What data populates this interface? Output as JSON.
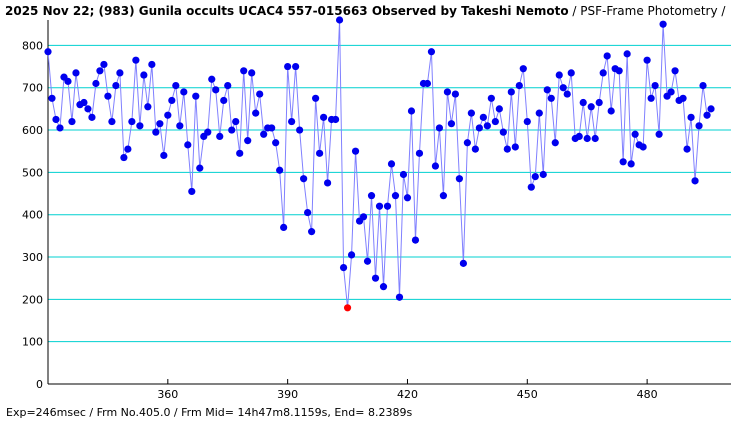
{
  "title": {
    "main": "2025 Nov 22; (983) Gunila occults UCAC4 557-015663 Observed by Takeshi Nemoto",
    "sub": " / PSF-Frame Photometry /"
  },
  "footer": {
    "text": "Exp=246msec / Frm No.405.0 / Frm Mid= 14h47m8.1159s, End= 8.2389s"
  },
  "colors": {
    "grid": "#00d0d0",
    "line": "#8080ff",
    "point": "#0000ee",
    "highlight": "#ff0000"
  },
  "chart_data": {
    "type": "line",
    "xlim": [
      330,
      501
    ],
    "ylim": [
      0,
      860
    ],
    "xticks": [
      360,
      390,
      420,
      450,
      480
    ],
    "yticks": [
      0,
      100,
      200,
      300,
      400,
      500,
      600,
      700,
      800
    ],
    "highlight_x": 405,
    "series": [
      {
        "x_start": 330,
        "x_step": 1,
        "values": [
          785,
          675,
          625,
          605,
          725,
          715,
          620,
          735,
          660,
          665,
          650,
          630,
          710,
          740,
          755,
          680,
          620,
          705,
          735,
          535,
          555,
          620,
          765,
          610,
          730,
          655,
          755,
          595,
          615,
          540,
          635,
          670,
          705,
          610,
          690,
          565,
          455,
          680,
          510,
          585,
          595,
          720,
          695,
          585,
          670,
          705,
          600,
          620,
          545,
          740,
          575,
          735,
          640,
          685,
          590,
          605,
          605,
          570,
          505,
          370,
          750,
          620,
          750,
          600,
          485,
          405,
          360,
          675,
          545,
          630,
          475,
          625,
          625,
          860,
          275,
          180,
          305,
          550,
          385,
          395,
          290,
          445,
          250,
          420,
          230,
          420,
          520,
          445,
          205,
          495,
          440,
          645,
          340,
          545,
          710,
          710,
          785,
          515,
          605,
          445,
          690,
          615,
          685,
          485,
          285,
          570,
          640,
          555,
          605,
          630,
          610,
          675,
          620,
          650,
          595,
          555,
          690,
          560,
          705,
          745,
          620,
          465,
          490,
          640,
          495,
          695,
          675,
          570,
          730,
          700,
          685,
          735,
          580,
          585,
          665,
          580,
          655,
          580,
          665,
          735,
          775,
          645,
          745,
          740,
          525,
          780,
          520,
          590,
          565,
          560,
          765,
          675,
          705,
          590,
          850,
          680,
          690,
          740,
          670,
          675,
          555,
          630,
          480,
          610,
          705,
          635,
          650
        ]
      }
    ]
  }
}
